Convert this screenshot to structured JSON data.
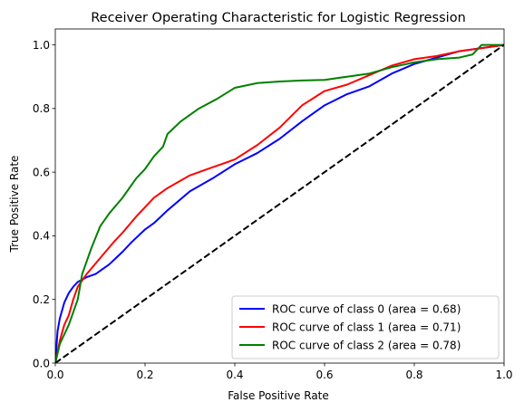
{
  "chart_data": {
    "type": "line",
    "title": "Receiver Operating Characteristic for Logistic Regression",
    "xlabel": "False Positive Rate",
    "ylabel": "True Positive Rate",
    "xlim": [
      0.0,
      1.0
    ],
    "ylim": [
      0.0,
      1.05
    ],
    "xticks": [
      "0.0",
      "0.2",
      "0.4",
      "0.6",
      "0.8",
      "1.0"
    ],
    "yticks": [
      "0.0",
      "0.2",
      "0.4",
      "0.6",
      "0.8",
      "1.0"
    ],
    "grid": false,
    "legend_position": "bottom-right",
    "series": [
      {
        "name": "ROC curve of class 0 (area = 0.68)",
        "color": "#0000ff",
        "x": [
          0.0,
          0.005,
          0.01,
          0.02,
          0.03,
          0.04,
          0.05,
          0.07,
          0.09,
          0.1,
          0.12,
          0.15,
          0.17,
          0.2,
          0.22,
          0.25,
          0.3,
          0.35,
          0.4,
          0.45,
          0.5,
          0.55,
          0.6,
          0.65,
          0.7,
          0.75,
          0.8,
          0.85,
          0.9,
          0.95,
          1.0
        ],
        "y": [
          0.0,
          0.1,
          0.14,
          0.19,
          0.22,
          0.24,
          0.255,
          0.27,
          0.28,
          0.29,
          0.31,
          0.35,
          0.38,
          0.42,
          0.44,
          0.48,
          0.54,
          0.58,
          0.625,
          0.66,
          0.705,
          0.76,
          0.81,
          0.845,
          0.87,
          0.91,
          0.94,
          0.96,
          0.98,
          0.99,
          1.0
        ]
      },
      {
        "name": "ROC curve of class 1 (area = 0.71)",
        "color": "#ff0000",
        "x": [
          0.0,
          0.01,
          0.02,
          0.03,
          0.04,
          0.05,
          0.06,
          0.07,
          0.1,
          0.13,
          0.15,
          0.18,
          0.2,
          0.22,
          0.25,
          0.3,
          0.35,
          0.4,
          0.45,
          0.5,
          0.55,
          0.6,
          0.65,
          0.7,
          0.75,
          0.8,
          0.85,
          0.9,
          0.95,
          1.0
        ],
        "y": [
          0.0,
          0.07,
          0.12,
          0.15,
          0.2,
          0.24,
          0.26,
          0.28,
          0.33,
          0.38,
          0.41,
          0.46,
          0.49,
          0.52,
          0.55,
          0.59,
          0.615,
          0.64,
          0.685,
          0.74,
          0.81,
          0.855,
          0.875,
          0.905,
          0.935,
          0.955,
          0.965,
          0.98,
          0.99,
          1.0
        ]
      },
      {
        "name": "ROC curve of class 2 (area = 0.78)",
        "color": "#008000",
        "x": [
          0.0,
          0.01,
          0.02,
          0.03,
          0.04,
          0.05,
          0.06,
          0.08,
          0.1,
          0.12,
          0.15,
          0.18,
          0.2,
          0.22,
          0.24,
          0.25,
          0.28,
          0.32,
          0.36,
          0.4,
          0.45,
          0.5,
          0.55,
          0.6,
          0.65,
          0.7,
          0.75,
          0.8,
          0.85,
          0.9,
          0.93,
          0.95,
          1.0
        ],
        "y": [
          0.0,
          0.06,
          0.09,
          0.12,
          0.16,
          0.2,
          0.28,
          0.36,
          0.43,
          0.47,
          0.52,
          0.58,
          0.61,
          0.65,
          0.68,
          0.72,
          0.76,
          0.8,
          0.83,
          0.865,
          0.88,
          0.885,
          0.888,
          0.89,
          0.9,
          0.91,
          0.93,
          0.945,
          0.955,
          0.96,
          0.97,
          1.0,
          1.0
        ]
      },
      {
        "name": "",
        "color": "#000000",
        "dashed": true,
        "x": [
          0.0,
          1.0
        ],
        "y": [
          0.0,
          1.0
        ]
      }
    ]
  }
}
